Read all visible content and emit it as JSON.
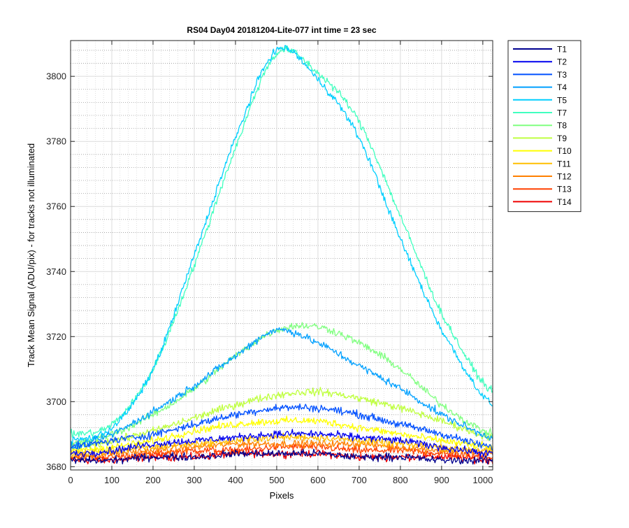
{
  "chart_data": {
    "type": "line",
    "title": "RS04 Day04 20181204-Lite-077 int time = 23 sec",
    "xlabel": "Pixels",
    "ylabel": "Track Mean Signal (ADU/pix) - for tracks not illuminated",
    "xlim": [
      0,
      1024
    ],
    "ylim": [
      3679,
      3811
    ],
    "xticks": [
      0,
      100,
      200,
      300,
      400,
      500,
      600,
      700,
      800,
      900,
      1000
    ],
    "yticks": [
      3680,
      3700,
      3720,
      3740,
      3760,
      3780,
      3800
    ],
    "grid": true,
    "legend_position": "outside-top-right",
    "x_sample": [
      0,
      100,
      200,
      300,
      400,
      500,
      600,
      700,
      800,
      900,
      1024
    ],
    "series": [
      {
        "name": "T1",
        "color": "#00008f",
        "values": [
          3682,
          3682,
          3683,
          3683,
          3684,
          3684,
          3684,
          3683,
          3683,
          3682,
          3682
        ]
      },
      {
        "name": "T2",
        "color": "#0000ef",
        "values": [
          3684,
          3685,
          3687,
          3688,
          3689,
          3690,
          3690,
          3689,
          3688,
          3686,
          3684
        ]
      },
      {
        "name": "T3",
        "color": "#0050ff",
        "values": [
          3686,
          3688,
          3690,
          3693,
          3696,
          3698,
          3698,
          3696,
          3693,
          3690,
          3686
        ]
      },
      {
        "name": "T4",
        "color": "#00a0ff",
        "values": [
          3686,
          3690,
          3697,
          3705,
          3714,
          3722,
          3718,
          3711,
          3704,
          3696,
          3689
        ]
      },
      {
        "name": "T5",
        "color": "#00cfff",
        "values": [
          3688,
          3692,
          3710,
          3745,
          3781,
          3808,
          3799,
          3781,
          3750,
          3722,
          3699
        ]
      },
      {
        "name": "T7",
        "color": "#40ffbf",
        "values": [
          3690,
          3693,
          3710,
          3742,
          3778,
          3807,
          3801,
          3786,
          3757,
          3727,
          3703
        ]
      },
      {
        "name": "T8",
        "color": "#80ff80",
        "values": [
          3687,
          3690,
          3696,
          3704,
          3714,
          3722,
          3723,
          3718,
          3710,
          3699,
          3690
        ]
      },
      {
        "name": "T9",
        "color": "#bfff40",
        "values": [
          3686,
          3688,
          3691,
          3695,
          3699,
          3702,
          3703,
          3701,
          3698,
          3694,
          3689
        ]
      },
      {
        "name": "T10",
        "color": "#ffff00",
        "values": [
          3685,
          3686,
          3688,
          3691,
          3693,
          3694,
          3694,
          3692,
          3690,
          3688,
          3686
        ]
      },
      {
        "name": "T11",
        "color": "#ffbf00",
        "values": [
          3684,
          3685,
          3686,
          3687,
          3688,
          3689,
          3689,
          3688,
          3687,
          3686,
          3685
        ]
      },
      {
        "name": "T12",
        "color": "#ff8000",
        "values": [
          3683,
          3684,
          3685,
          3686,
          3687,
          3687,
          3687,
          3687,
          3686,
          3685,
          3684
        ]
      },
      {
        "name": "T13",
        "color": "#ff4000",
        "values": [
          3683,
          3683,
          3684,
          3685,
          3685,
          3686,
          3686,
          3685,
          3685,
          3684,
          3683
        ]
      },
      {
        "name": "T14",
        "color": "#ef0000",
        "values": [
          3682,
          3682,
          3683,
          3683,
          3684,
          3684,
          3684,
          3683,
          3683,
          3683,
          3682
        ]
      }
    ]
  }
}
